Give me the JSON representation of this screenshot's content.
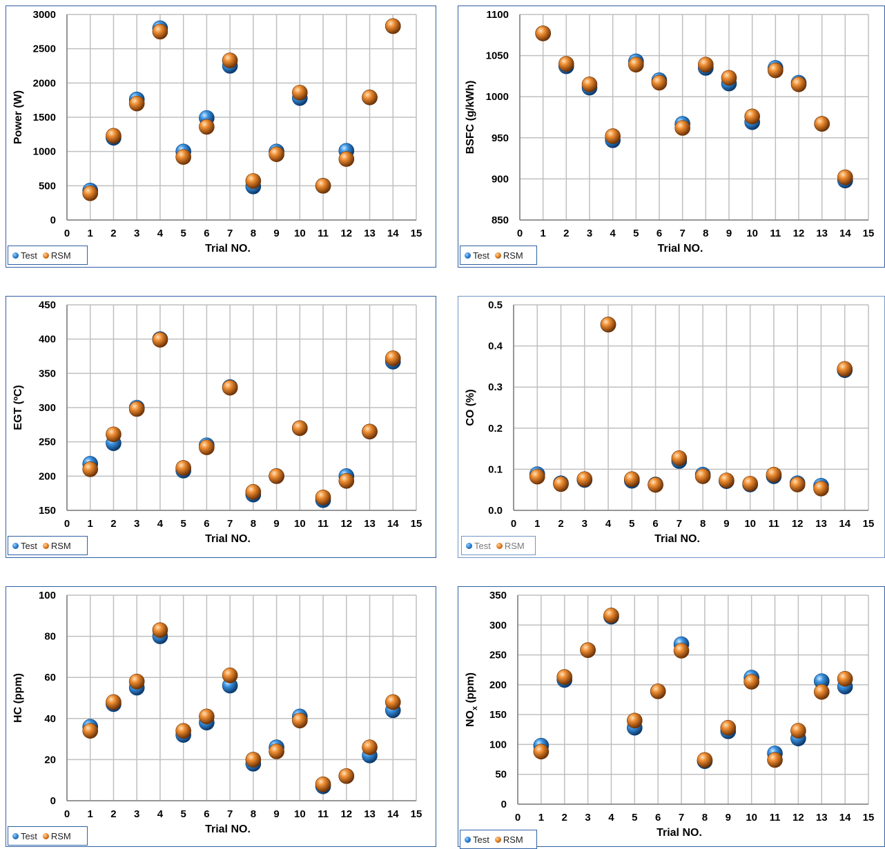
{
  "legend_labels": {
    "test": "Test",
    "rsm": "RSM"
  },
  "colors": {
    "test": "#2f86d8",
    "rsm": "#e8862a",
    "grid": "#bfbfbf",
    "border": "#2e5fa3"
  },
  "chart_data": [
    {
      "type": "scatter",
      "xlabel": "Trial NO.",
      "ylabel": "Power (W)",
      "xlim": [
        0,
        15
      ],
      "ylim": [
        0,
        3000
      ],
      "xticks": [
        0,
        1,
        2,
        3,
        4,
        5,
        6,
        7,
        8,
        9,
        10,
        11,
        12,
        13,
        14,
        15
      ],
      "yticks": [
        0,
        500,
        1000,
        1500,
        2000,
        2500,
        3000
      ],
      "grid": true,
      "legend": "bottom-left",
      "series": [
        {
          "name": "Test",
          "x": [
            1,
            2,
            3,
            4,
            5,
            6,
            7,
            8,
            9,
            10,
            11,
            12,
            13,
            14
          ],
          "values": [
            430,
            1200,
            1760,
            2800,
            1000,
            1490,
            2250,
            490,
            1000,
            1780,
            500,
            1010,
            1790,
            2830
          ]
        },
        {
          "name": "RSM",
          "x": [
            1,
            2,
            3,
            4,
            5,
            6,
            7,
            8,
            9,
            10,
            11,
            12,
            13,
            14
          ],
          "values": [
            390,
            1230,
            1700,
            2750,
            920,
            1360,
            2330,
            570,
            960,
            1860,
            500,
            890,
            1790,
            2830
          ]
        }
      ]
    },
    {
      "type": "scatter",
      "xlabel": "Trial NO.",
      "ylabel": "BSFC (g/kWh)",
      "xlim": [
        0,
        15
      ],
      "ylim": [
        850,
        1100
      ],
      "xticks": [
        0,
        1,
        2,
        3,
        4,
        5,
        6,
        7,
        8,
        9,
        10,
        11,
        12,
        13,
        14,
        15
      ],
      "yticks": [
        850,
        900,
        950,
        1000,
        1050,
        1100
      ],
      "grid": true,
      "legend": "bottom-left",
      "series": [
        {
          "name": "Test",
          "x": [
            1,
            2,
            3,
            4,
            5,
            6,
            7,
            8,
            9,
            10,
            11,
            12,
            13,
            14
          ],
          "values": [
            1077,
            1037,
            1011,
            947,
            1043,
            1020,
            967,
            1035,
            1016,
            969,
            1035,
            1017,
            967,
            898
          ]
        },
        {
          "name": "RSM",
          "x": [
            1,
            2,
            3,
            4,
            5,
            6,
            7,
            8,
            9,
            10,
            11,
            12,
            13,
            14
          ],
          "values": [
            1077,
            1040,
            1015,
            952,
            1039,
            1017,
            962,
            1039,
            1023,
            976,
            1032,
            1015,
            967,
            902
          ]
        }
      ]
    },
    {
      "type": "scatter",
      "xlabel": "Trial NO.",
      "ylabel": "EGT (ºC)",
      "xlim": [
        0,
        15
      ],
      "ylim": [
        150,
        450
      ],
      "xticks": [
        0,
        1,
        2,
        3,
        4,
        5,
        6,
        7,
        8,
        9,
        10,
        11,
        12,
        13,
        14,
        15
      ],
      "yticks": [
        150,
        200,
        250,
        300,
        350,
        400,
        450
      ],
      "grid": true,
      "legend": "bottom-left",
      "series": [
        {
          "name": "Test",
          "x": [
            1,
            2,
            3,
            4,
            5,
            6,
            7,
            8,
            9,
            10,
            11,
            12,
            13,
            14
          ],
          "values": [
            218,
            248,
            300,
            400,
            208,
            245,
            330,
            173,
            200,
            270,
            165,
            200,
            265,
            367
          ]
        },
        {
          "name": "RSM",
          "x": [
            1,
            2,
            3,
            4,
            5,
            6,
            7,
            8,
            9,
            10,
            11,
            12,
            13,
            14
          ],
          "values": [
            210,
            261,
            298,
            399,
            212,
            242,
            329,
            177,
            200,
            270,
            169,
            193,
            265,
            372
          ]
        }
      ]
    },
    {
      "type": "scatter",
      "xlabel": "Trial NO.",
      "ylabel": "CO (%)",
      "xlim": [
        0,
        15
      ],
      "ylim": [
        0,
        0.5
      ],
      "xticks": [
        0,
        1,
        2,
        3,
        4,
        5,
        6,
        7,
        8,
        9,
        10,
        11,
        12,
        13,
        14,
        15
      ],
      "yticks": [
        "0.0",
        "0.1",
        "0.2",
        "0.3",
        "0.4",
        "0.5"
      ],
      "grid": true,
      "legend": "bottom-left",
      "series": [
        {
          "name": "Test",
          "x": [
            1,
            2,
            3,
            4,
            5,
            6,
            7,
            8,
            9,
            10,
            11,
            12,
            13,
            14
          ],
          "values": [
            0.088,
            0.066,
            0.074,
            0.452,
            0.072,
            0.063,
            0.12,
            0.087,
            0.071,
            0.063,
            0.083,
            0.066,
            0.06,
            0.341
          ]
        },
        {
          "name": "RSM",
          "x": [
            1,
            2,
            3,
            4,
            5,
            6,
            7,
            8,
            9,
            10,
            11,
            12,
            13,
            14
          ],
          "values": [
            0.082,
            0.064,
            0.076,
            0.452,
            0.076,
            0.062,
            0.127,
            0.083,
            0.073,
            0.065,
            0.087,
            0.063,
            0.053,
            0.344
          ]
        }
      ]
    },
    {
      "type": "scatter",
      "xlabel": "Trial NO.",
      "ylabel": "HC (ppm)",
      "xlim": [
        0,
        15
      ],
      "ylim": [
        0,
        100
      ],
      "xticks": [
        0,
        1,
        2,
        3,
        4,
        5,
        6,
        7,
        8,
        9,
        10,
        11,
        12,
        13,
        14,
        15
      ],
      "yticks": [
        0,
        20,
        40,
        60,
        80,
        100
      ],
      "grid": true,
      "legend": "bottom-left",
      "series": [
        {
          "name": "Test",
          "x": [
            1,
            2,
            3,
            4,
            5,
            6,
            7,
            8,
            9,
            10,
            11,
            12,
            13,
            14
          ],
          "values": [
            36,
            47,
            55,
            80,
            32,
            38,
            56,
            18,
            26,
            41,
            7,
            12,
            22,
            44
          ]
        },
        {
          "name": "RSM",
          "x": [
            1,
            2,
            3,
            4,
            5,
            6,
            7,
            8,
            9,
            10,
            11,
            12,
            13,
            14
          ],
          "values": [
            34,
            48,
            58,
            83,
            34,
            41,
            61,
            20,
            24,
            39,
            8,
            12,
            26,
            48
          ]
        }
      ]
    },
    {
      "type": "scatter",
      "xlabel": "Trial NO.",
      "ylabel": "NOx (ppm)",
      "xlim": [
        0,
        15
      ],
      "ylim": [
        0,
        350
      ],
      "xticks": [
        0,
        1,
        2,
        3,
        4,
        5,
        6,
        7,
        8,
        9,
        10,
        11,
        12,
        13,
        14,
        15
      ],
      "yticks": [
        0,
        50,
        100,
        150,
        200,
        250,
        300,
        350
      ],
      "grid": true,
      "legend": "bottom-left",
      "series": [
        {
          "name": "Test",
          "x": [
            1,
            2,
            3,
            4,
            5,
            6,
            7,
            8,
            9,
            10,
            11,
            12,
            13,
            14
          ],
          "values": [
            98,
            208,
            258,
            314,
            128,
            189,
            268,
            72,
            122,
            212,
            85,
            110,
            206,
            197
          ]
        },
        {
          "name": "RSM",
          "x": [
            1,
            2,
            3,
            4,
            5,
            6,
            7,
            8,
            9,
            10,
            11,
            12,
            13,
            14
          ],
          "values": [
            88,
            213,
            258,
            316,
            140,
            189,
            257,
            74,
            128,
            205,
            74,
            123,
            188,
            210
          ]
        }
      ]
    }
  ]
}
